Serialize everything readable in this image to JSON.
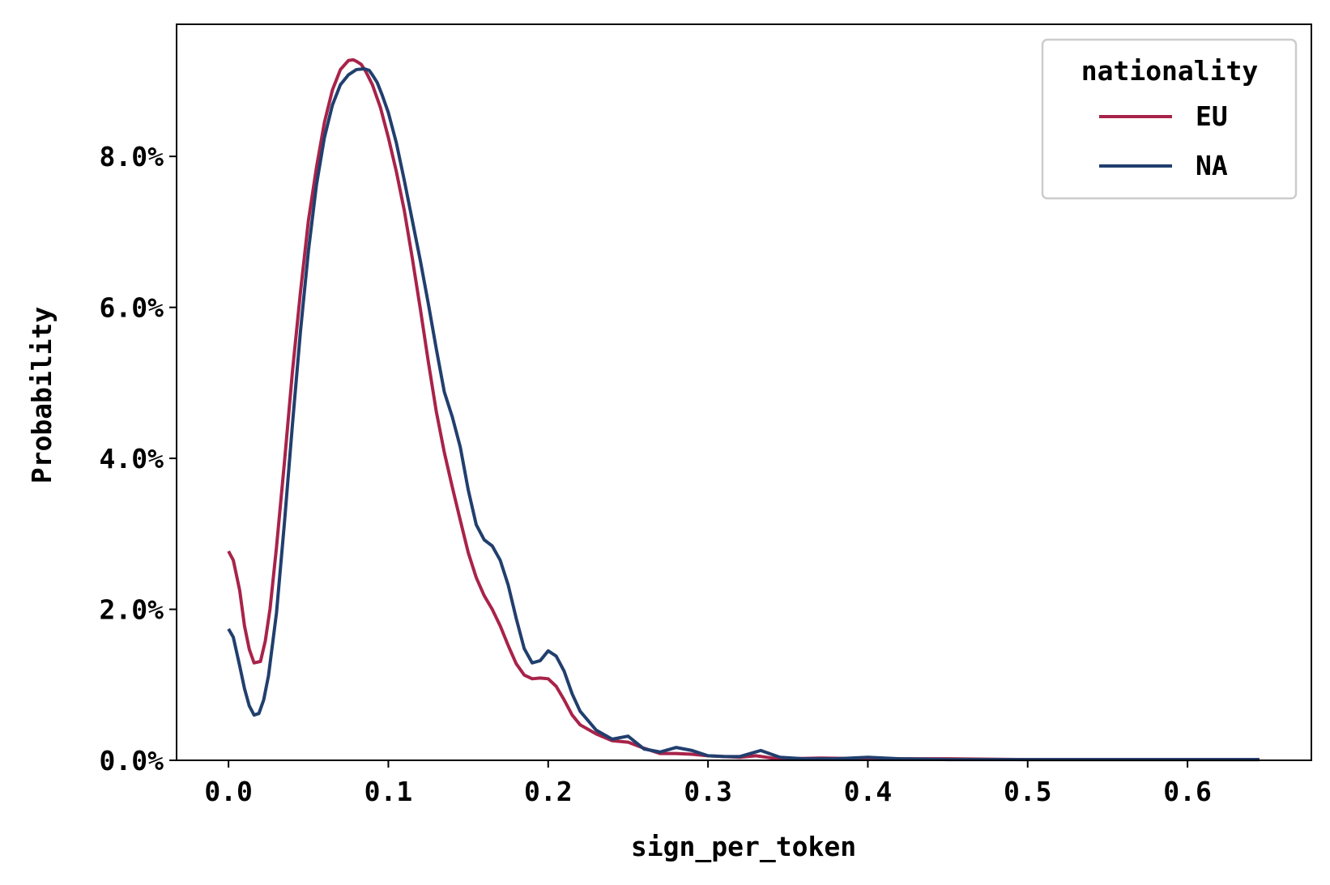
{
  "chart_data": {
    "type": "line",
    "title": "",
    "xlabel": "sign_per_token",
    "ylabel": "Probability",
    "xlim": [
      -0.0325,
      0.6775
    ],
    "ylim": [
      0.0,
      0.0975
    ],
    "x_ticks": [
      0.0,
      0.1,
      0.2,
      0.3,
      0.4,
      0.5,
      0.6
    ],
    "x_tick_labels": [
      "0.0",
      "0.1",
      "0.2",
      "0.3",
      "0.4",
      "0.5",
      "0.6"
    ],
    "y_ticks": [
      0.0,
      0.02,
      0.04,
      0.06,
      0.08
    ],
    "y_tick_labels": [
      "0.0%",
      "2.0%",
      "4.0%",
      "6.0%",
      "8.0%"
    ],
    "grid": false,
    "legend": {
      "title": "nationality",
      "placement": "top-right"
    },
    "series": [
      {
        "name": "EU",
        "color": "#a8234a",
        "x": [
          0.0,
          0.003,
          0.007,
          0.01,
          0.013,
          0.016,
          0.02,
          0.023,
          0.026,
          0.03,
          0.035,
          0.04,
          0.045,
          0.05,
          0.055,
          0.06,
          0.065,
          0.07,
          0.075,
          0.078,
          0.08,
          0.083,
          0.086,
          0.09,
          0.095,
          0.1,
          0.105,
          0.11,
          0.115,
          0.12,
          0.125,
          0.13,
          0.135,
          0.14,
          0.145,
          0.15,
          0.155,
          0.16,
          0.165,
          0.17,
          0.175,
          0.18,
          0.185,
          0.19,
          0.195,
          0.2,
          0.205,
          0.21,
          0.215,
          0.22,
          0.23,
          0.24,
          0.25,
          0.26,
          0.27,
          0.28,
          0.29,
          0.3,
          0.31,
          0.32,
          0.33,
          0.34,
          0.35,
          0.37,
          0.4,
          0.45,
          0.5,
          0.55,
          0.6,
          0.645
        ],
        "y": [
          0.0277,
          0.0265,
          0.0225,
          0.0178,
          0.0147,
          0.0129,
          0.0131,
          0.0158,
          0.0201,
          0.0282,
          0.0395,
          0.0515,
          0.062,
          0.0715,
          0.0785,
          0.0845,
          0.0888,
          0.0915,
          0.0927,
          0.0928,
          0.0926,
          0.0922,
          0.0912,
          0.0895,
          0.0865,
          0.0825,
          0.078,
          0.0728,
          0.0665,
          0.0598,
          0.0528,
          0.0462,
          0.0408,
          0.0362,
          0.0318,
          0.0275,
          0.0242,
          0.0218,
          0.02,
          0.0178,
          0.0152,
          0.0128,
          0.0113,
          0.0108,
          0.0109,
          0.0108,
          0.0098,
          0.008,
          0.006,
          0.0047,
          0.0035,
          0.0026,
          0.0024,
          0.0016,
          0.0009,
          0.0009,
          0.0008,
          0.0006,
          0.0005,
          0.0004,
          0.0006,
          0.0003,
          0.0002,
          0.0003,
          0.0002,
          0.0002,
          0.0001,
          0.0001,
          0.0001,
          0.0001
        ]
      },
      {
        "name": "NA",
        "color": "#213f6e",
        "x": [
          0.0,
          0.003,
          0.007,
          0.01,
          0.013,
          0.016,
          0.019,
          0.022,
          0.025,
          0.03,
          0.035,
          0.04,
          0.045,
          0.05,
          0.055,
          0.06,
          0.065,
          0.07,
          0.075,
          0.08,
          0.085,
          0.088,
          0.09,
          0.093,
          0.096,
          0.1,
          0.105,
          0.11,
          0.115,
          0.12,
          0.125,
          0.13,
          0.135,
          0.14,
          0.145,
          0.15,
          0.155,
          0.16,
          0.165,
          0.17,
          0.175,
          0.18,
          0.185,
          0.19,
          0.195,
          0.2,
          0.205,
          0.21,
          0.215,
          0.22,
          0.23,
          0.24,
          0.25,
          0.26,
          0.27,
          0.28,
          0.29,
          0.3,
          0.31,
          0.32,
          0.333,
          0.345,
          0.36,
          0.38,
          0.4,
          0.42,
          0.45,
          0.5,
          0.55,
          0.6,
          0.645
        ],
        "y": [
          0.0174,
          0.0163,
          0.0125,
          0.0095,
          0.0072,
          0.006,
          0.0062,
          0.008,
          0.0112,
          0.0195,
          0.0315,
          0.0445,
          0.0568,
          0.0675,
          0.0762,
          0.0825,
          0.0868,
          0.0895,
          0.0908,
          0.0915,
          0.0916,
          0.0914,
          0.0908,
          0.0898,
          0.0882,
          0.0858,
          0.0818,
          0.0768,
          0.0715,
          0.0662,
          0.0605,
          0.0545,
          0.0488,
          0.0455,
          0.0415,
          0.0358,
          0.0312,
          0.0292,
          0.0284,
          0.0265,
          0.0232,
          0.0188,
          0.0148,
          0.0129,
          0.0132,
          0.0145,
          0.0138,
          0.0118,
          0.0088,
          0.0065,
          0.004,
          0.0028,
          0.0032,
          0.0015,
          0.0011,
          0.0017,
          0.0013,
          0.0006,
          0.0005,
          0.0005,
          0.0013,
          0.0004,
          0.0002,
          0.0002,
          0.0004,
          0.0002,
          0.0001,
          0.0001,
          0.0001,
          0.0001,
          0.0001
        ]
      }
    ]
  }
}
